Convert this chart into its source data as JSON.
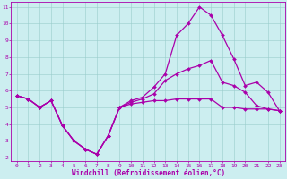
{
  "title": "",
  "xlabel": "Windchill (Refroidissement éolien,°C)",
  "ylabel": "",
  "xlim": [
    -0.5,
    23.5
  ],
  "ylim": [
    1.8,
    11.3
  ],
  "xticks": [
    0,
    1,
    2,
    3,
    4,
    5,
    6,
    7,
    8,
    9,
    10,
    11,
    12,
    13,
    14,
    15,
    16,
    17,
    18,
    19,
    20,
    21,
    22,
    23
  ],
  "yticks": [
    2,
    3,
    4,
    5,
    6,
    7,
    8,
    9,
    10,
    11
  ],
  "bg_color": "#cceef0",
  "line_color": "#aa00aa",
  "grid_color": "#99cccc",
  "series1_x": [
    0,
    1,
    2,
    3,
    4,
    5,
    6,
    7,
    8,
    9,
    10,
    11,
    12,
    13,
    14,
    15,
    16,
    17,
    18,
    19,
    20,
    21,
    22,
    23
  ],
  "series1_y": [
    5.7,
    5.5,
    5.0,
    5.4,
    3.9,
    3.0,
    2.5,
    2.2,
    3.3,
    5.0,
    5.2,
    5.3,
    5.4,
    5.4,
    5.5,
    5.5,
    5.5,
    5.5,
    5.0,
    5.0,
    4.9,
    4.9,
    4.9,
    4.8
  ],
  "series2_x": [
    0,
    1,
    2,
    3,
    4,
    5,
    6,
    7,
    8,
    9,
    10,
    11,
    12,
    13,
    14,
    15,
    16,
    17,
    18,
    19,
    20,
    21,
    22,
    23
  ],
  "series2_y": [
    5.7,
    5.5,
    5.0,
    5.4,
    3.9,
    3.0,
    2.5,
    2.2,
    3.3,
    5.0,
    5.3,
    5.5,
    5.8,
    6.6,
    7.0,
    7.3,
    7.5,
    7.8,
    6.5,
    6.3,
    5.9,
    5.1,
    4.9,
    4.8
  ],
  "series3_x": [
    0,
    1,
    2,
    3,
    4,
    5,
    6,
    7,
    8,
    9,
    10,
    11,
    12,
    13,
    14,
    15,
    16,
    17,
    18,
    19,
    20,
    21,
    22,
    23
  ],
  "series3_y": [
    5.7,
    5.5,
    5.0,
    5.4,
    3.9,
    3.0,
    2.5,
    2.2,
    3.3,
    5.0,
    5.4,
    5.6,
    6.2,
    7.0,
    9.3,
    10.0,
    11.0,
    10.5,
    9.3,
    7.9,
    6.3,
    6.5,
    5.9,
    4.8
  ],
  "marker": "D",
  "markersize": 2,
  "linewidth": 0.9,
  "tick_fontsize": 4.5,
  "xlabel_fontsize": 5.5
}
